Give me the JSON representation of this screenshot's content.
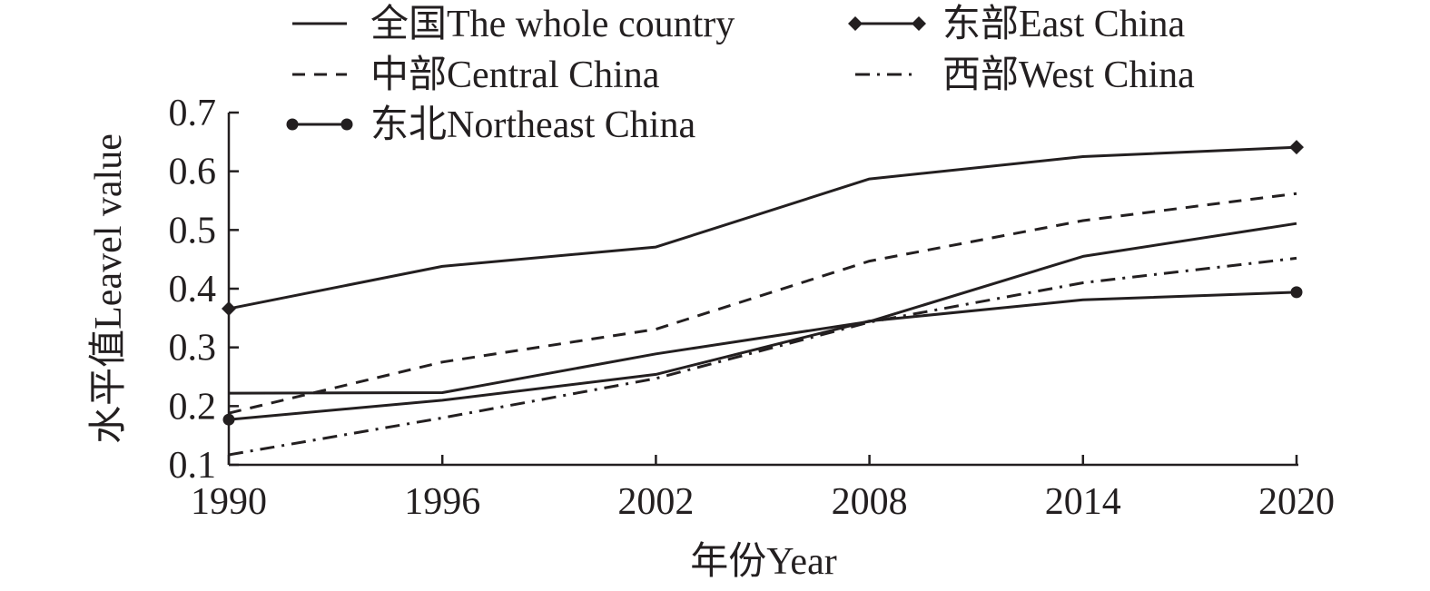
{
  "chart_data": {
    "type": "line",
    "x": [
      1990,
      1996,
      2002,
      2008,
      2014,
      2020
    ],
    "xlabel": "年份Year",
    "ylabel": "水平值Leavel value",
    "ylim": [
      0.1,
      0.7
    ],
    "yticks": [
      "0.1",
      "0.2",
      "0.3",
      "0.4",
      "0.5",
      "0.6",
      "0.7"
    ],
    "xticks": [
      "1990",
      "1996",
      "2002",
      "2008",
      "2014",
      "2020"
    ],
    "legend_position": "top",
    "series": [
      {
        "name": "全国The whole country",
        "style": "solid",
        "marker": "none",
        "values": [
          0.222,
          0.223,
          0.289,
          0.344,
          0.455,
          0.511
        ]
      },
      {
        "name": "东部East China",
        "style": "solid",
        "marker": "diamond",
        "values": [
          0.366,
          0.438,
          0.471,
          0.587,
          0.625,
          0.641
        ]
      },
      {
        "name": "中部Central China",
        "style": "dashed",
        "marker": "none",
        "values": [
          0.188,
          0.275,
          0.331,
          0.447,
          0.516,
          0.562
        ]
      },
      {
        "name": "西部West China",
        "style": "dashdot",
        "marker": "none",
        "values": [
          0.117,
          0.18,
          0.247,
          0.343,
          0.41,
          0.452
        ]
      },
      {
        "name": "东北Northeast China",
        "style": "solid",
        "marker": "circle",
        "values": [
          0.177,
          0.21,
          0.254,
          0.345,
          0.381,
          0.394
        ]
      }
    ],
    "line_color": "#231f20"
  }
}
